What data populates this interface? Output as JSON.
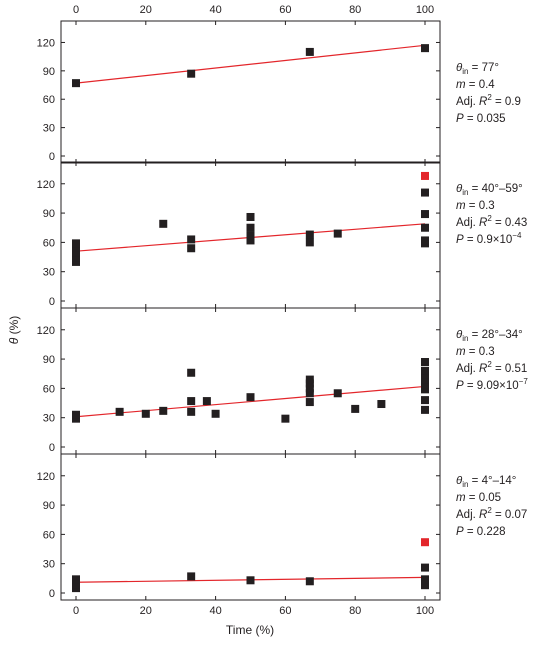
{
  "chart_data": {
    "type": "scatter",
    "xlabel": "Time (%)",
    "ylabel": "θ (%)",
    "xlim": [
      0,
      100
    ],
    "x_ticks": [
      0,
      20,
      40,
      60,
      80,
      100
    ],
    "ylim": [
      0,
      130
    ],
    "y_ticks": [
      0,
      30,
      60,
      90,
      120
    ],
    "panels": [
      {
        "annotation": {
          "theta_in": "θin = 77°",
          "m": "m = 0.4",
          "adj_r2": "Adj. R2 = 0.9",
          "p": "P = 0.035"
        },
        "fit": {
          "intercept": 77,
          "slope": 0.4
        },
        "points": [
          {
            "x": 0,
            "y": 77
          },
          {
            "x": 33,
            "y": 87
          },
          {
            "x": 67,
            "y": 110
          },
          {
            "x": 100,
            "y": 114
          }
        ],
        "outliers": []
      },
      {
        "annotation": {
          "theta_in": "θin = 40°–59°",
          "m": "m = 0.3",
          "adj_r2": "Adj. R2 = 0.43",
          "p": "P = 0.9×10−4"
        },
        "fit": {
          "intercept": 51,
          "slope": 0.28
        },
        "points": [
          {
            "x": 0,
            "y": 40
          },
          {
            "x": 0,
            "y": 45
          },
          {
            "x": 0,
            "y": 50
          },
          {
            "x": 0,
            "y": 55
          },
          {
            "x": 0,
            "y": 59
          },
          {
            "x": 25,
            "y": 79
          },
          {
            "x": 33,
            "y": 54
          },
          {
            "x": 33,
            "y": 63
          },
          {
            "x": 50,
            "y": 62
          },
          {
            "x": 50,
            "y": 67
          },
          {
            "x": 50,
            "y": 75
          },
          {
            "x": 50,
            "y": 86
          },
          {
            "x": 67,
            "y": 60
          },
          {
            "x": 67,
            "y": 68
          },
          {
            "x": 75,
            "y": 69
          },
          {
            "x": 100,
            "y": 59
          },
          {
            "x": 100,
            "y": 62
          },
          {
            "x": 100,
            "y": 75
          },
          {
            "x": 100,
            "y": 89
          },
          {
            "x": 100,
            "y": 111
          }
        ],
        "outliers": [
          {
            "x": 100,
            "y": 128
          }
        ]
      },
      {
        "annotation": {
          "theta_in": "θin = 28°–34°",
          "m": "m = 0.3",
          "adj_r2": "Adj. R2 = 0.51",
          "p": "P = 9.09×10−7"
        },
        "fit": {
          "intercept": 31,
          "slope": 0.31
        },
        "points": [
          {
            "x": 0,
            "y": 29
          },
          {
            "x": 0,
            "y": 33
          },
          {
            "x": 12.5,
            "y": 36
          },
          {
            "x": 20,
            "y": 34
          },
          {
            "x": 25,
            "y": 37
          },
          {
            "x": 33,
            "y": 36
          },
          {
            "x": 33,
            "y": 47
          },
          {
            "x": 33,
            "y": 76
          },
          {
            "x": 37.5,
            "y": 47
          },
          {
            "x": 40,
            "y": 34
          },
          {
            "x": 50,
            "y": 51
          },
          {
            "x": 60,
            "y": 29
          },
          {
            "x": 67,
            "y": 46
          },
          {
            "x": 67,
            "y": 55
          },
          {
            "x": 67,
            "y": 60
          },
          {
            "x": 67,
            "y": 65
          },
          {
            "x": 67,
            "y": 69
          },
          {
            "x": 75,
            "y": 55
          },
          {
            "x": 80,
            "y": 39
          },
          {
            "x": 87.5,
            "y": 44
          },
          {
            "x": 100,
            "y": 38
          },
          {
            "x": 100,
            "y": 48
          },
          {
            "x": 100,
            "y": 59
          },
          {
            "x": 100,
            "y": 64
          },
          {
            "x": 100,
            "y": 69
          },
          {
            "x": 100,
            "y": 74
          },
          {
            "x": 100,
            "y": 78
          },
          {
            "x": 100,
            "y": 87
          }
        ],
        "outliers": []
      },
      {
        "annotation": {
          "theta_in": "θin = 4°–14°",
          "m": "m = 0.05",
          "adj_r2": "Adj. R2 = 0.07",
          "p": "P = 0.228"
        },
        "fit": {
          "intercept": 11,
          "slope": 0.05
        },
        "points": [
          {
            "x": 0,
            "y": 5
          },
          {
            "x": 0,
            "y": 9
          },
          {
            "x": 0,
            "y": 14
          },
          {
            "x": 33,
            "y": 17
          },
          {
            "x": 50,
            "y": 13
          },
          {
            "x": 67,
            "y": 12
          },
          {
            "x": 100,
            "y": 8
          },
          {
            "x": 100,
            "y": 14
          },
          {
            "x": 100,
            "y": 26
          }
        ],
        "outliers": [
          {
            "x": 100,
            "y": 52
          }
        ]
      }
    ],
    "colors": {
      "points": "#231f20",
      "outlier": "#e3262b",
      "fit": "#e3262b",
      "axis": "#231f20"
    }
  }
}
